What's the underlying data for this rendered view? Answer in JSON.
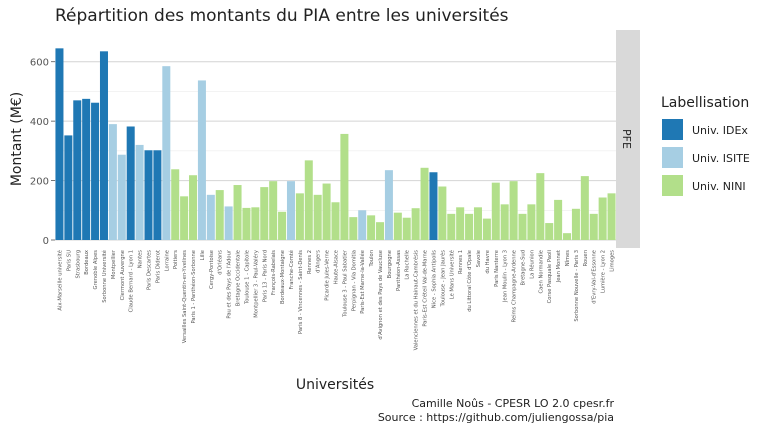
{
  "chart_data": {
    "type": "bar",
    "title": "Répartition des montants du PIA entre les universités",
    "xlabel": "Universités",
    "ylabel": "Montant (M€)",
    "ylim": [
      0,
      700
    ],
    "yticks": [
      0,
      200,
      400,
      600
    ],
    "grid": true,
    "facet": "PFE",
    "legend": {
      "title": "Labellisation",
      "position": "right",
      "items": [
        {
          "key": "idex",
          "label": "Univ. IDEx",
          "color": "#1f78b4"
        },
        {
          "key": "isite",
          "label": "Univ. ISITE",
          "color": "#a6cee3"
        },
        {
          "key": "nini",
          "label": "Univ. NINI",
          "color": "#b2df8a"
        }
      ]
    },
    "categories": [
      "Aix-Marseille université",
      "Paris SU",
      "Strasbourg",
      "Bordeaux",
      "Grenoble Alpes",
      "Sorbonne Université",
      "Montpellier",
      "Clermont Auvergne",
      "Claude Bernard - Lyon 1",
      "Nantes",
      "Paris Descartes",
      "Paris Diderot",
      "Lorraine",
      "Poitiers",
      "Versailles Saint-Quentin-en-Yvelines",
      "Paris 1 - Panthéon-Sorbonne",
      "Lille",
      "Cergy-Pontoise",
      "d'Orléans",
      "Pau et des Pays de l'Adour",
      "Bretagne Occidentale",
      "Toulouse 1 - Capitole",
      "Montpellier 3 - Paul-Valéry",
      "Paris 13 - Paris Nord",
      "François-Rabelais",
      "Bordeaux-Montaigne",
      "Franche-Comté",
      "Paris 8 - Vincennes - Saint-Denis",
      "Rennes 2",
      "d'Angers",
      "Picardie Jules-Verne",
      "Haute-Alsace",
      "Toulouse 3 - Paul Sabatier",
      "Perpignan - Via Domitia",
      "Paris-Est Marne-la-Vallée",
      "Toulon",
      "d'Avignon et des Pays de Vaucluse",
      "Bourgogne",
      "Panthéon-Assas",
      "La Rochelle",
      "Valenciennes et du Hainaut-Cambrésis",
      "Paris-Est Créteil Val-de-Marne",
      "Nice - Sophia Antipolis",
      "Toulouse - Jean Jaurès",
      "Le Mans Université",
      "Rennes 1",
      "du Littoral Côte d'Opale",
      "Savoie",
      "du Havre",
      "Paris Nanterre",
      "Jean Moulin - Lyon 3",
      "Reims Champagne-Ardenne",
      "Bretagne-Sud",
      "La Réunion",
      "Caen Normandie",
      "Corse Pasquale Paoli",
      "Jean Monnet",
      "Nîmes",
      "Sorbonne Nouvelle - Paris 3",
      "Rouen",
      "d'Evry-Val-d'Essonne",
      "Lumière - Lyon 2",
      "Limoges"
    ],
    "series": [
      {
        "key": "idex",
        "values": [
          645,
          352,
          470,
          475,
          462,
          635,
          0,
          0,
          382,
          0,
          302,
          302,
          0,
          0,
          0,
          0,
          0,
          0,
          0,
          0,
          0,
          0,
          0,
          0,
          0,
          0,
          0,
          0,
          0,
          0,
          0,
          0,
          0,
          0,
          0,
          0,
          0,
          0,
          0,
          0,
          0,
          0,
          228,
          0,
          0,
          0,
          0,
          0,
          0,
          0,
          0,
          0,
          0,
          0,
          0,
          0,
          0,
          0,
          0,
          0,
          0,
          0,
          0
        ]
      },
      {
        "key": "isite",
        "values": [
          0,
          0,
          0,
          0,
          0,
          0,
          390,
          287,
          0,
          320,
          0,
          0,
          585,
          0,
          0,
          0,
          537,
          152,
          0,
          113,
          0,
          0,
          0,
          0,
          0,
          0,
          198,
          0,
          0,
          0,
          0,
          0,
          0,
          0,
          100,
          0,
          0,
          235,
          0,
          0,
          0,
          0,
          0,
          0,
          0,
          0,
          0,
          0,
          0,
          0,
          0,
          0,
          0,
          0,
          0,
          0,
          0,
          0,
          0,
          0,
          0,
          0,
          0
        ]
      },
      {
        "key": "nini",
        "values": [
          0,
          0,
          0,
          0,
          0,
          0,
          0,
          0,
          0,
          0,
          0,
          0,
          0,
          238,
          147,
          218,
          0,
          0,
          168,
          0,
          185,
          108,
          110,
          178,
          198,
          95,
          0,
          157,
          268,
          152,
          190,
          127,
          357,
          77,
          0,
          83,
          60,
          0,
          92,
          75,
          107,
          243,
          0,
          180,
          88,
          110,
          88,
          110,
          72,
          193,
          120,
          198,
          88,
          120,
          225,
          57,
          135,
          23,
          105,
          215,
          88,
          143,
          157
        ]
      }
    ]
  },
  "caption": {
    "line1": "Camille Noûs - CPESR LO 2.0 cpesr.fr",
    "line2": "Source : https://github.com/juliengossa/pia"
  }
}
